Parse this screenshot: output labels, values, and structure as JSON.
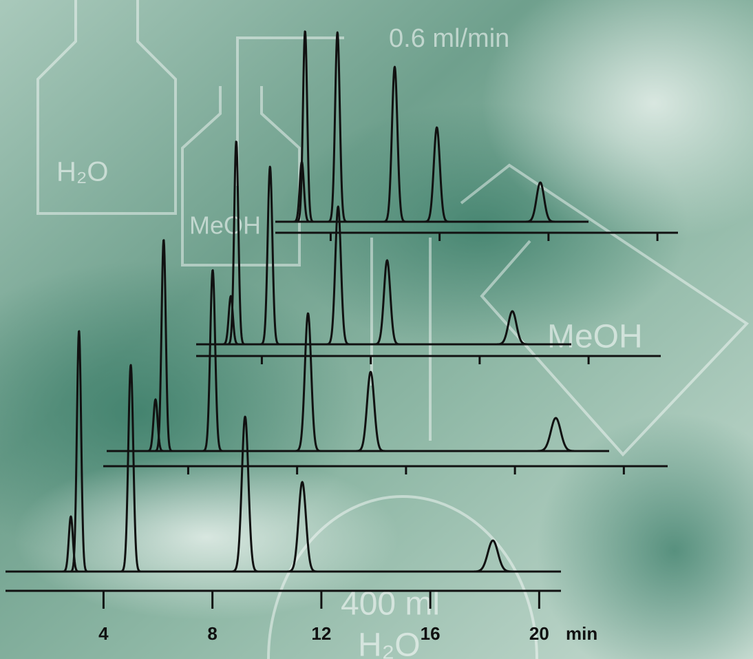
{
  "chart_data": {
    "type": "chromatogram",
    "xlim": [
      0.4,
      20.8
    ],
    "xticks": [
      4,
      8,
      12,
      16,
      20
    ],
    "x_label": "min",
    "color": "#111111",
    "annotations": [
      "0.6 ml/min",
      "H₂O",
      "MeOH",
      "MeOH",
      "400 ml",
      "H₂O"
    ],
    "traces": [
      {
        "x": [
          2.8,
          3.1,
          5.0,
          9.2,
          11.3,
          18.3
        ],
        "values": [
          80,
          350,
          300,
          225,
          130,
          45
        ]
      },
      {
        "x": [
          2.8,
          3.1,
          4.9,
          8.4,
          10.7,
          17.5
        ],
        "values": [
          75,
          307,
          263,
          200,
          115,
          48
        ]
      },
      {
        "x": [
          2.86,
          3.06,
          4.3,
          6.8,
          8.6,
          13.2
        ],
        "values": [
          70,
          295,
          258,
          200,
          122,
          48
        ]
      },
      {
        "x": [
          2.94,
          3.06,
          4.25,
          6.35,
          7.9,
          11.7
        ],
        "values": [
          87,
          277,
          275,
          225,
          137,
          57
        ]
      }
    ]
  }
}
